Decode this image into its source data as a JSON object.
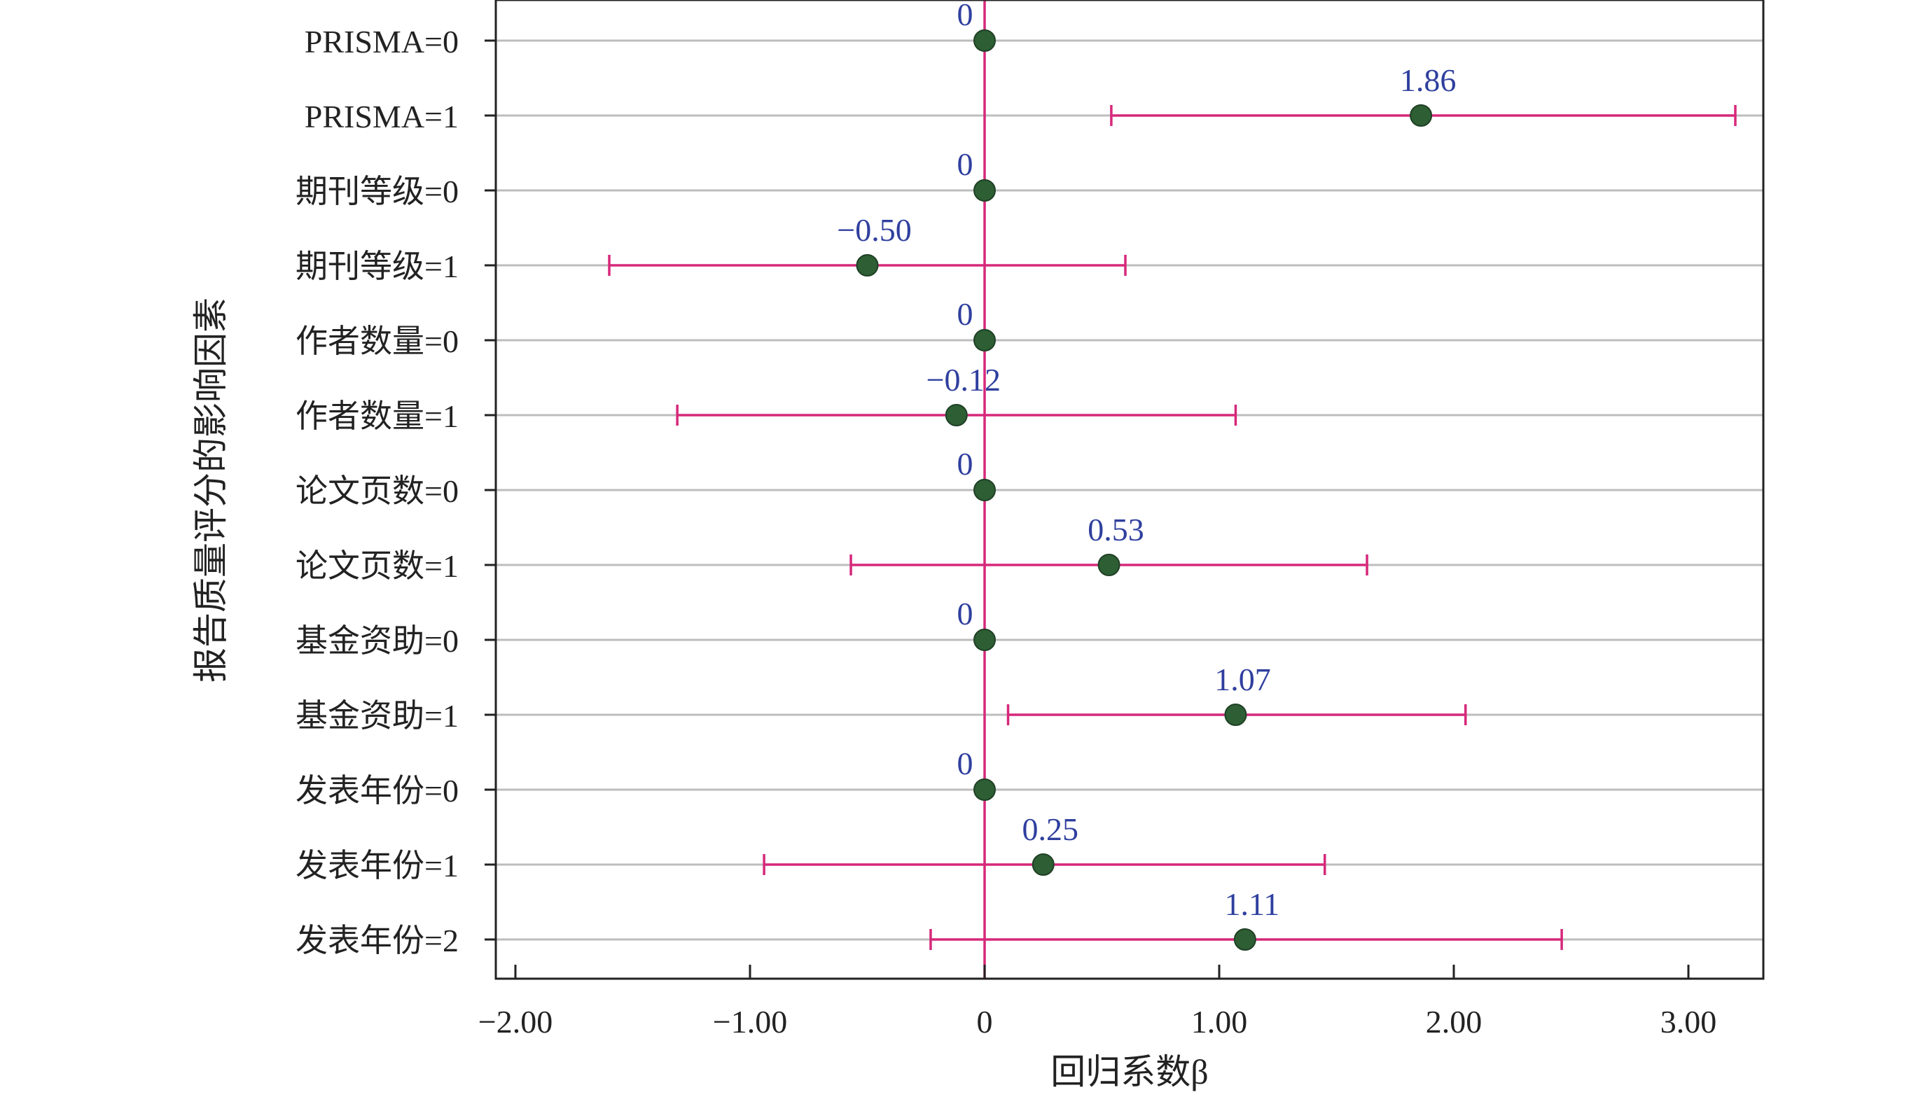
{
  "chart_data": {
    "type": "forest",
    "title": "",
    "xlabel": "回归系数β",
    "ylabel": "报告质量评分的影响因素",
    "xlim": [
      -2.2,
      3.3
    ],
    "x_ticks": [
      -2.0,
      -1.0,
      0,
      1.0,
      2.0,
      3.0
    ],
    "x_tick_labels": [
      "−2.00",
      "−1.00",
      "0",
      "1.00",
      "2.00",
      "3.00"
    ],
    "grid": "horizontal",
    "reference_line": 0,
    "colors": {
      "point": "#2e5e34",
      "point_stroke": "#1f4025",
      "ci": "#d6287a",
      "value_label": "#2f3f9e",
      "grid": "#bdbdbd",
      "axis": "#222222"
    },
    "rows": [
      {
        "label": "PRISMA=0",
        "value": 0,
        "value_label": "0",
        "ci": null
      },
      {
        "label": "PRISMA=1",
        "value": 1.86,
        "value_label": "1.86",
        "ci": [
          0.54,
          3.2
        ]
      },
      {
        "label": "期刊等级=0",
        "value": 0,
        "value_label": "0",
        "ci": null
      },
      {
        "label": "期刊等级=1",
        "value": -0.5,
        "value_label": "−0.50",
        "ci": [
          -1.6,
          0.6
        ]
      },
      {
        "label": "作者数量=0",
        "value": 0,
        "value_label": "0",
        "ci": null
      },
      {
        "label": "作者数量=1",
        "value": -0.12,
        "value_label": "−0.12",
        "ci": [
          -1.31,
          1.07
        ]
      },
      {
        "label": "论文页数=0",
        "value": 0,
        "value_label": "0",
        "ci": null
      },
      {
        "label": "论文页数=1",
        "value": 0.53,
        "value_label": "0.53",
        "ci": [
          -0.57,
          1.63
        ]
      },
      {
        "label": "基金资助=0",
        "value": 0,
        "value_label": "0",
        "ci": null
      },
      {
        "label": "基金资助=1",
        "value": 1.07,
        "value_label": "1.07",
        "ci": [
          0.1,
          2.05
        ]
      },
      {
        "label": "发表年份=0",
        "value": 0,
        "value_label": "0",
        "ci": null
      },
      {
        "label": "发表年份=1",
        "value": 0.25,
        "value_label": "0.25",
        "ci": [
          -0.94,
          1.45
        ]
      },
      {
        "label": "发表年份=2",
        "value": 1.11,
        "value_label": "1.11",
        "ci": [
          -0.23,
          2.46
        ]
      }
    ]
  }
}
